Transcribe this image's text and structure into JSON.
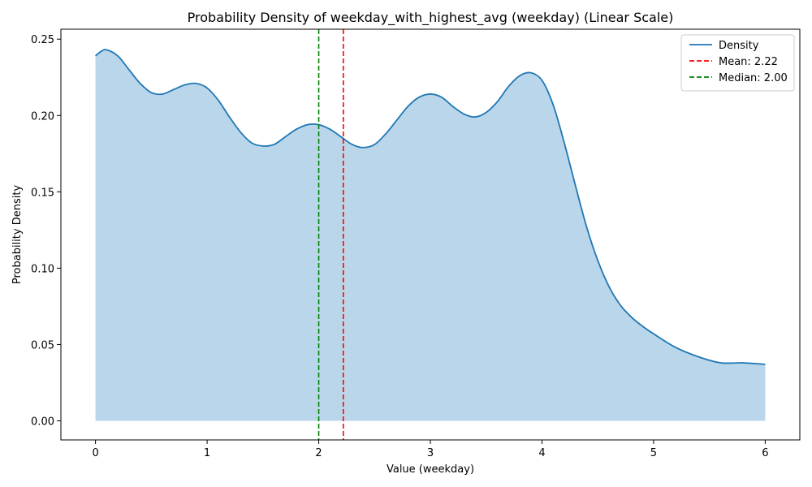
{
  "chart_data": {
    "type": "area",
    "title": "Probability Density of weekday_with_highest_avg (weekday) (Linear Scale)",
    "xlabel": "Value (weekday)",
    "ylabel": "Probability Density",
    "xlim": [
      -0.31,
      6.31
    ],
    "ylim": [
      -0.0125,
      0.2565
    ],
    "xticks": [
      0,
      1,
      2,
      3,
      4,
      5,
      6
    ],
    "xtick_labels": [
      "0",
      "1",
      "2",
      "3",
      "4",
      "5",
      "6"
    ],
    "yticks": [
      0,
      0.05,
      0.1,
      0.15,
      0.2,
      0.25
    ],
    "ytick_labels": [
      "0.00",
      "0.05",
      "0.10",
      "0.15",
      "0.20",
      "0.25"
    ],
    "grid": false,
    "legend_position": "top-right",
    "series": [
      {
        "name": "Density",
        "color": "#1f77b4",
        "fill_color": "#bad6ea",
        "x": [
          0,
          0.05,
          0.1,
          0.2,
          0.3,
          0.4,
          0.5,
          0.6,
          0.7,
          0.8,
          0.9,
          1.0,
          1.1,
          1.2,
          1.3,
          1.4,
          1.5,
          1.6,
          1.7,
          1.8,
          1.9,
          2.0,
          2.1,
          2.2,
          2.3,
          2.4,
          2.5,
          2.6,
          2.7,
          2.8,
          2.9,
          3.0,
          3.1,
          3.2,
          3.3,
          3.4,
          3.5,
          3.6,
          3.7,
          3.8,
          3.9,
          4.0,
          4.1,
          4.2,
          4.3,
          4.4,
          4.5,
          4.6,
          4.7,
          4.8,
          4.9,
          5.0,
          5.2,
          5.4,
          5.6,
          5.8,
          6.0
        ],
        "y": [
          0.239,
          0.242,
          0.243,
          0.239,
          0.23,
          0.221,
          0.215,
          0.214,
          0.217,
          0.22,
          0.221,
          0.218,
          0.21,
          0.199,
          0.189,
          0.182,
          0.18,
          0.181,
          0.186,
          0.191,
          0.194,
          0.194,
          0.191,
          0.186,
          0.181,
          0.179,
          0.181,
          0.188,
          0.197,
          0.206,
          0.212,
          0.214,
          0.212,
          0.206,
          0.201,
          0.199,
          0.202,
          0.209,
          0.219,
          0.226,
          0.228,
          0.223,
          0.207,
          0.182,
          0.154,
          0.127,
          0.105,
          0.088,
          0.076,
          0.068,
          0.062,
          0.057,
          0.048,
          0.042,
          0.038,
          0.038,
          0.037
        ]
      }
    ],
    "reference_lines": [
      {
        "name": "Mean: 2.22",
        "x": 2.22,
        "color": "#ff0000",
        "style": "dashed"
      },
      {
        "name": "Median: 2.00",
        "x": 2.0,
        "color": "#008000",
        "style": "dashed"
      }
    ]
  }
}
